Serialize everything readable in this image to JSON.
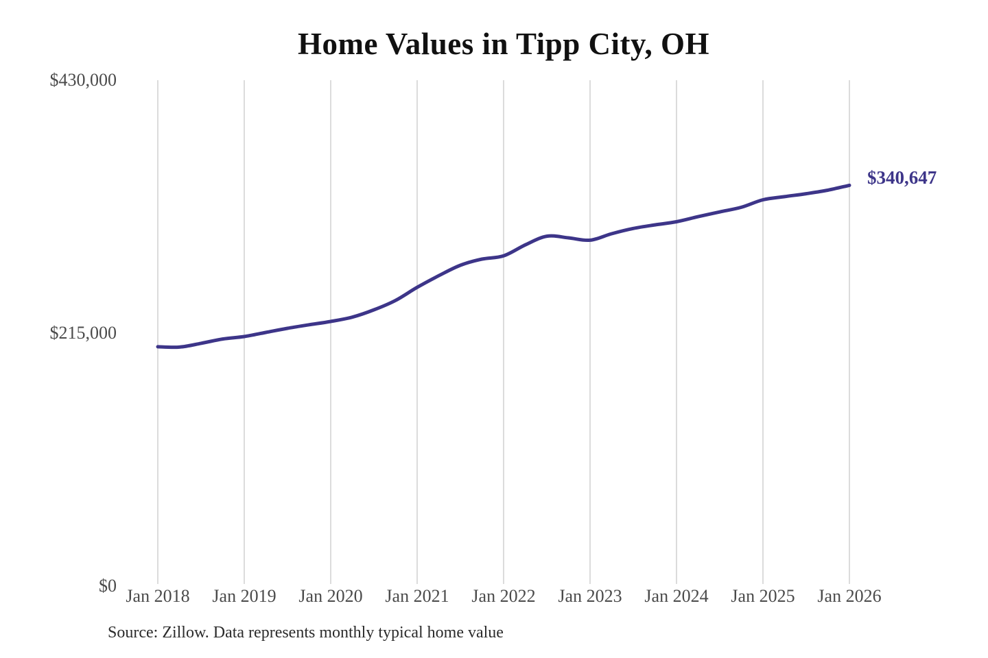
{
  "page": {
    "background": "#ffffff"
  },
  "header": {
    "title": "Home Values in Tipp City, OH"
  },
  "footer": {
    "source_note": "Source: Zillow. Data represents monthly typical home value"
  },
  "colors": {
    "line": "#3d3589",
    "end_label": "#3d3589",
    "gridline": "#cccccc",
    "tick_label": "#4a4a4a",
    "title": "#111111",
    "source": "#2b2b2b"
  },
  "chart_data": {
    "type": "line",
    "title": "Home Values in Tipp City, OH",
    "xlabel": "",
    "ylabel": "",
    "ylim": [
      0,
      430000
    ],
    "grid": "vertical-only",
    "legend": "none",
    "end_label": "$340,647",
    "final_value": 340647,
    "y_ticks": [
      {
        "label": "$0",
        "value": 0
      },
      {
        "label": "$215,000",
        "value": 215000
      },
      {
        "label": "$430,000",
        "value": 430000
      }
    ],
    "x_tick_labels": [
      "Jan 2018",
      "Jan 2019",
      "Jan 2020",
      "Jan 2021",
      "Jan 2022",
      "Jan 2023",
      "Jan 2024",
      "Jan 2025",
      "Jan 2026"
    ],
    "series": [
      {
        "name": "Monthly typical home value",
        "points": [
          [
            "2018-01",
            203400
          ],
          [
            "2018-04",
            203100
          ],
          [
            "2018-07",
            206300
          ],
          [
            "2018-10",
            210000
          ],
          [
            "2019-01",
            212100
          ],
          [
            "2019-04",
            215600
          ],
          [
            "2019-07",
            219100
          ],
          [
            "2019-10",
            222100
          ],
          [
            "2020-01",
            224900
          ],
          [
            "2020-04",
            228600
          ],
          [
            "2020-07",
            234800
          ],
          [
            "2020-10",
            242800
          ],
          [
            "2021-01",
            253900
          ],
          [
            "2021-04",
            263800
          ],
          [
            "2021-07",
            272700
          ],
          [
            "2021-10",
            277900
          ],
          [
            "2022-01",
            280700
          ],
          [
            "2022-04",
            290000
          ],
          [
            "2022-07",
            297400
          ],
          [
            "2022-10",
            296000
          ],
          [
            "2023-01",
            294000
          ],
          [
            "2023-04",
            299500
          ],
          [
            "2023-07",
            304000
          ],
          [
            "2023-10",
            307000
          ],
          [
            "2024-01",
            309700
          ],
          [
            "2024-04",
            314000
          ],
          [
            "2024-07",
            318000
          ],
          [
            "2024-10",
            322000
          ],
          [
            "2025-01",
            328300
          ],
          [
            "2025-04",
            331000
          ],
          [
            "2025-07",
            333500
          ],
          [
            "2025-10",
            336500
          ],
          [
            "2026-01",
            340647
          ]
        ]
      }
    ]
  }
}
